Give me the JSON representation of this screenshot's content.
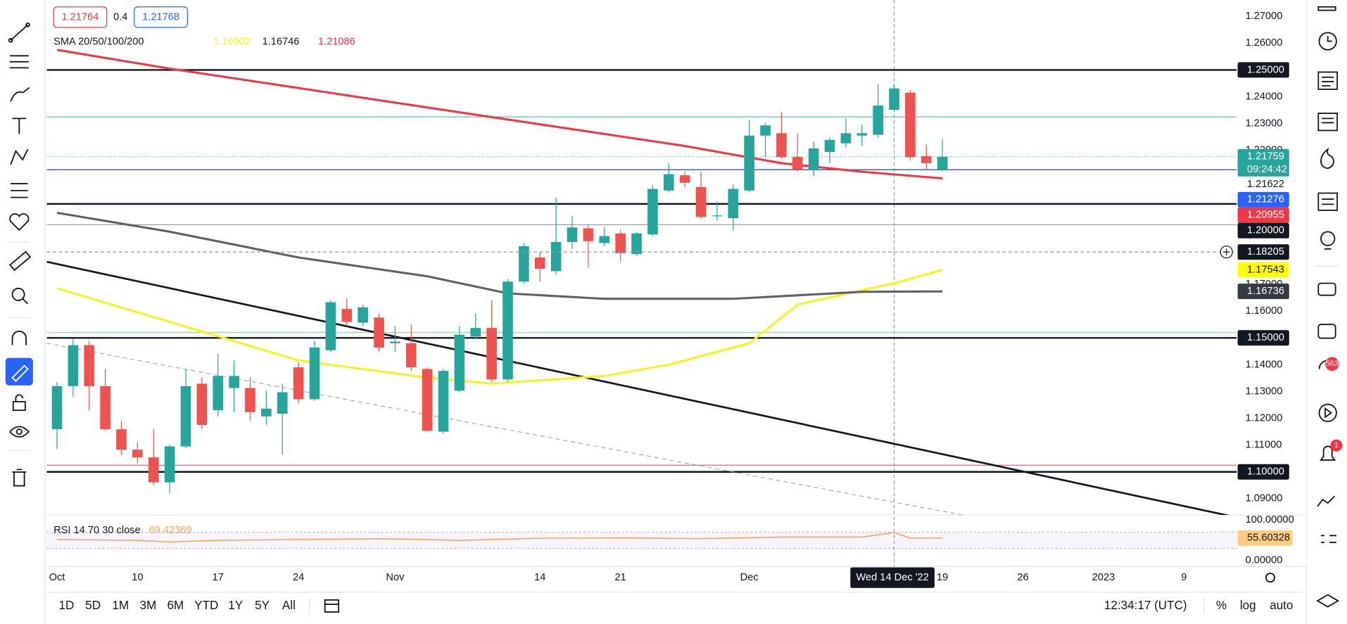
{
  "toolbar": {
    "bid": "1.21764",
    "spread": "0.4",
    "ask": "1.21768"
  },
  "ui": {
    "ranges": [
      "1D",
      "5D",
      "1M",
      "3M",
      "6M",
      "YTD",
      "1Y",
      "5Y",
      "All"
    ],
    "clock": "12:34:17 (UTC)",
    "options": [
      "%",
      "log",
      "auto"
    ],
    "badges": [
      "563",
      "1"
    ]
  },
  "chart_data": {
    "type": "candlestick",
    "up_color": "#26a69a",
    "down_color": "#ef5350",
    "xlim": [
      -0.64,
      73.28
    ],
    "ylim": [
      1.0839,
      1.2761
    ],
    "categories": [
      "Oct",
      null,
      null,
      null,
      null,
      "10",
      null,
      null,
      null,
      null,
      "17",
      null,
      null,
      null,
      null,
      "24",
      null,
      null,
      null,
      null,
      null,
      "Nov",
      null,
      null,
      null,
      null,
      null,
      null,
      null,
      null,
      "14",
      null,
      null,
      null,
      null,
      "21",
      null,
      null,
      null,
      null,
      null,
      null,
      null,
      "Dec",
      null,
      null,
      null,
      null,
      null,
      null,
      null,
      null,
      null,
      null,
      null,
      "19",
      null,
      null,
      null,
      null,
      "26",
      null,
      null,
      null,
      null,
      "2023",
      null,
      null,
      null,
      null,
      "9"
    ],
    "open": [
      1.1159,
      1.132,
      1.1473,
      1.132,
      1.1159,
      1.1083,
      1.1054,
      1.0961,
      1.1095,
      1.1329,
      1.123,
      1.1313,
      1.1313,
      1.1207,
      1.1217,
      1.139,
      1.1271,
      1.1454,
      1.1608,
      1.1557,
      1.1576,
      1.148,
      1.148,
      1.1384,
      1.115,
      1.1303,
      1.1505,
      1.1537,
      1.1345,
      1.171,
      1.18,
      1.1749,
      1.1858,
      1.1909,
      1.1854,
      1.189,
      1.1813,
      1.1886,
      1.205,
      1.2107,
      1.2063,
      1.1954,
      1.1947,
      1.205,
      1.2255,
      1.2264,
      1.2175,
      1.2127,
      1.2194,
      1.2226,
      1.2255,
      1.2258,
      1.2351,
      1.2415,
      1.2178,
      1.2127,
      null,
      null,
      null,
      null,
      null,
      null,
      null,
      null,
      null,
      null,
      null,
      null,
      null,
      null,
      null
    ],
    "high": [
      1.1336,
      1.1496,
      1.1489,
      1.1384,
      1.1191,
      1.1111,
      1.1159,
      1.1102,
      1.1384,
      1.1352,
      1.1441,
      1.1416,
      1.1352,
      1.1303,
      1.1329,
      1.1409,
      1.1489,
      1.164,
      1.1646,
      1.1624,
      1.1592,
      1.1544,
      1.155,
      1.139,
      1.1384,
      1.1544,
      1.1592,
      1.164,
      1.172,
      1.1854,
      1.1822,
      1.2024,
      1.1954,
      1.1922,
      1.1912,
      1.1902,
      1.1896,
      1.2072,
      1.2152,
      1.212,
      1.212,
      1.2008,
      1.2072,
      1.2312,
      1.2303,
      1.2344,
      1.2264,
      1.2232,
      1.2248,
      1.2319,
      1.2296,
      1.2447,
      1.2447,
      1.2425,
      1.2223,
      1.2242,
      null,
      null,
      null,
      null,
      null,
      null,
      null,
      null,
      null,
      null,
      null,
      null,
      null,
      null,
      null
    ],
    "low": [
      1.1086,
      1.1281,
      1.123,
      1.1153,
      1.1063,
      1.1031,
      1.0951,
      1.0919,
      1.1089,
      1.1159,
      1.1207,
      1.1223,
      1.1191,
      1.1175,
      1.1063,
      1.1255,
      1.1265,
      1.1448,
      1.1544,
      1.1544,
      1.1448,
      1.1448,
      1.1377,
      1.115,
      1.1143,
      1.1297,
      1.1496,
      1.1336,
      1.1336,
      1.1704,
      1.171,
      1.1736,
      1.1832,
      1.1762,
      1.1842,
      1.1784,
      1.1806,
      1.188,
      1.2043,
      1.2063,
      1.1944,
      1.1938,
      1.1902,
      1.2043,
      1.2175,
      1.2168,
      1.212,
      1.2104,
      1.2152,
      1.221,
      1.2216,
      1.2248,
      1.2344,
      1.2162,
      1.2127,
      1.212,
      null,
      null,
      null,
      null,
      null,
      null,
      null,
      null,
      null,
      null,
      null,
      null,
      null,
      null,
      null
    ],
    "close": [
      1.132,
      1.1473,
      1.132,
      1.1159,
      1.1083,
      1.1054,
      1.0961,
      1.1095,
      1.132,
      1.1175,
      1.1358,
      1.1358,
      1.1223,
      1.1236,
      1.1297,
      1.1271,
      1.1464,
      1.1633,
      1.156,
      1.1614,
      1.1464,
      1.1486,
      1.139,
      1.1153,
      1.1377,
      1.1512,
      1.1537,
      1.1345,
      1.171,
      1.1842,
      1.1758,
      1.1858,
      1.1912,
      1.1861,
      1.188,
      1.1816,
      1.189,
      1.2056,
      1.2111,
      1.2079,
      1.1951,
      1.1957,
      1.2056,
      1.2255,
      1.2293,
      1.2175,
      1.2127,
      1.2207,
      1.2239,
      1.2264,
      1.2264,
      1.2367,
      1.2431,
      1.2175,
      1.2152,
      1.21759,
      null,
      null,
      null,
      null,
      null,
      null,
      null,
      null,
      null,
      null,
      null,
      null,
      null,
      null,
      null
    ],
    "yticks": [
      {
        "value": 1.27,
        "label": "1.27000"
      },
      {
        "value": 1.26,
        "label": "1.26000"
      },
      {
        "value": 1.24,
        "label": "1.24000"
      },
      {
        "value": 1.23,
        "label": "1.23000"
      },
      {
        "value": 1.22,
        "label": "1.22000"
      },
      {
        "value": 1.17,
        "label": "1.17000"
      },
      {
        "value": 1.16,
        "label": "1.16000"
      },
      {
        "value": 1.14,
        "label": "1.14000"
      },
      {
        "value": 1.13,
        "label": "1.13000"
      },
      {
        "value": 1.12,
        "label": "1.12000"
      },
      {
        "value": 1.11,
        "label": "1.11000"
      },
      {
        "value": 1.09,
        "label": "1.09000"
      }
    ],
    "sma": {
      "label": "SMA 20/50/100/200",
      "values": [
        1.16902,
        1.16746,
        1.21086
      ],
      "colors": [
        "#f5f51e",
        "#131722",
        "#f23645"
      ]
    },
    "lines": [
      {
        "color": "#f5f51e",
        "width": 2.5,
        "x": [
          0,
          7,
          15,
          23,
          27,
          34,
          38,
          43,
          46,
          52,
          55
        ],
        "values": [
          1.1685,
          1.156,
          1.1416,
          1.1352,
          1.1329,
          1.1358,
          1.14,
          1.148,
          1.1624,
          1.1704,
          1.17543
        ]
      },
      {
        "color": "#5d606b",
        "width": 2.5,
        "x": [
          0,
          7,
          15,
          23,
          28,
          34,
          42,
          50,
          55
        ],
        "values": [
          1.1967,
          1.1896,
          1.18,
          1.173,
          1.1666,
          1.1646,
          1.1646,
          1.1672,
          1.16736
        ]
      },
      {
        "color": "#f23645",
        "width": 2.5,
        "x": [
          0,
          7,
          23,
          39,
          45,
          50,
          55
        ],
        "values": [
          1.2575,
          1.2505,
          1.236,
          1.2216,
          1.2152,
          1.212,
          1.20955
        ]
      }
    ],
    "levels": [
      {
        "value": 1.25,
        "color": "#131722",
        "width": 2
      },
      {
        "value": 1.2325,
        "color": "#26a69a",
        "width": 0.7
      },
      {
        "value": 1.21759,
        "color": "#26a69a",
        "width": 0.8,
        "dash": true
      },
      {
        "value": 1.21276,
        "color": "#2962ff",
        "width": 1.2
      },
      {
        "value": 1.2,
        "color": "#131722",
        "width": 2
      },
      {
        "value": 1.1922,
        "color": "#4caf50",
        "width": 0.7
      },
      {
        "value": 1.1521,
        "color": "#81c784",
        "width": 0.7
      },
      {
        "value": 1.15,
        "color": "#131722",
        "width": 2
      },
      {
        "value": 1.1025,
        "color": "#f23645",
        "width": 0.8
      },
      {
        "value": 1.1,
        "color": "#131722",
        "width": 2
      }
    ],
    "trendlines": [
      {
        "values": [
          1.1784,
          1.083
        ],
        "color": "#131722",
        "width": 2.2
      },
      {
        "values": [
          1.148,
          1.0647
        ],
        "color": "#9598a1",
        "width": 0.8,
        "dash": true
      }
    ],
    "price_labels": [
      {
        "value": 1.25,
        "label": "1.25000",
        "bg": "#131722",
        "fg": "#ffffff"
      },
      {
        "value": 1.21759,
        "label": "1.21759",
        "sub": "09:24:42",
        "bg": "#26a69a",
        "fg": "#ffffff"
      },
      {
        "value": 1.21622,
        "label": "1.21622",
        "bg": "#ffffff",
        "fg": "#131722"
      },
      {
        "value": 1.21276,
        "label": "1.21276",
        "bg": "#2962ff",
        "fg": "#ffffff"
      },
      {
        "value": 1.20955,
        "label": "1.20955",
        "bg": "#f23645",
        "fg": "#ffffff"
      },
      {
        "value": 1.2,
        "label": "1.20000",
        "bg": "#131722",
        "fg": "#ffffff"
      },
      {
        "value": 1.18205,
        "label": "1.18205",
        "bg": "#131722",
        "fg": "#ffffff",
        "crosshair": true
      },
      {
        "value": 1.17543,
        "label": "1.17543",
        "bg": "#ffff00",
        "fg": "#131722"
      },
      {
        "value": 1.16736,
        "label": "1.16736",
        "bg": "#363a45",
        "fg": "#ffffff"
      },
      {
        "value": 1.15,
        "label": "1.15000",
        "bg": "#131722",
        "fg": "#ffffff"
      },
      {
        "value": 1.1,
        "label": "1.10000",
        "bg": "#131722",
        "fg": "#ffffff"
      }
    ],
    "crosshair": {
      "label": "Wed 14 Dec '22"
    },
    "rsi": {
      "label": "RSI 14 70 30 close",
      "color": "#f7a35c",
      "ylim": [
        0,
        100
      ],
      "yticks": [
        {
          "value": 100,
          "label": "100.00000"
        },
        {
          "value": 0,
          "label": "0.00000"
        }
      ],
      "bands": [
        70,
        30
      ],
      "x": [
        0,
        5,
        7,
        10,
        15,
        20,
        25,
        30,
        35,
        40,
        45,
        50,
        52,
        53,
        55
      ],
      "values": [
        52,
        50,
        46,
        50,
        52,
        54,
        50,
        55,
        56,
        54,
        58,
        58,
        69.42369,
        55,
        55.60328
      ]
    }
  }
}
